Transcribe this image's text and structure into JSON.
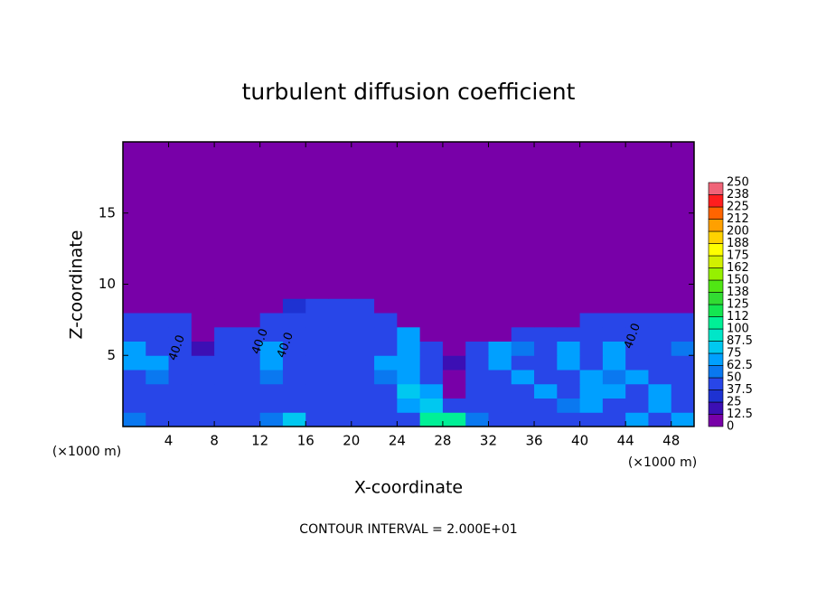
{
  "chart_data": {
    "type": "heatmap",
    "title": "turbulent diffusion coefficient",
    "xlabel": "X-coordinate",
    "ylabel": "Z-coordinate",
    "x_unit": "(×1000 m)",
    "footnote": "CONTOUR INTERVAL = 2.000E+01",
    "xlim": [
      0,
      50
    ],
    "ylim": [
      0,
      20
    ],
    "xticks": [
      4,
      8,
      12,
      16,
      20,
      24,
      28,
      32,
      36,
      40,
      44,
      48
    ],
    "yticks": [
      5,
      10,
      15
    ],
    "x_edges": [
      0,
      2,
      4,
      6,
      8,
      10,
      12,
      14,
      16,
      18,
      20,
      22,
      24,
      26,
      28,
      30,
      32,
      34,
      36,
      38,
      40,
      42,
      44,
      46,
      48,
      50
    ],
    "z_edges": [
      0,
      1,
      2,
      3,
      4,
      5,
      6,
      7,
      8,
      9,
      10,
      20
    ],
    "values": [
      [
        60,
        45,
        40,
        45,
        40,
        45,
        50,
        80,
        45,
        40,
        45,
        40,
        45,
        100,
        100,
        60,
        40,
        45,
        40,
        45,
        40,
        45,
        70,
        40,
        70
      ],
      [
        45,
        40,
        45,
        40,
        40,
        45,
        45,
        40,
        40,
        45,
        40,
        45,
        70,
        80,
        45,
        40,
        40,
        45,
        45,
        50,
        70,
        40,
        45,
        70,
        45
      ],
      [
        40,
        40,
        45,
        40,
        45,
        40,
        40,
        45,
        45,
        40,
        45,
        45,
        75,
        70,
        12,
        40,
        45,
        45,
        70,
        45,
        70,
        70,
        45,
        70,
        40
      ],
      [
        45,
        60,
        40,
        45,
        40,
        40,
        60,
        40,
        40,
        40,
        45,
        60,
        70,
        40,
        12,
        40,
        40,
        70,
        45,
        40,
        70,
        60,
        70,
        45,
        40
      ],
      [
        70,
        65,
        40,
        40,
        40,
        40,
        70,
        40,
        40,
        40,
        40,
        65,
        70,
        40,
        20,
        40,
        70,
        40,
        40,
        70,
        40,
        70,
        45,
        40,
        45
      ],
      [
        70,
        40,
        45,
        20,
        40,
        45,
        70,
        45,
        40,
        40,
        45,
        40,
        70,
        45,
        12,
        40,
        70,
        60,
        40,
        70,
        40,
        70,
        40,
        40,
        60
      ],
      [
        40,
        40,
        40,
        0,
        40,
        40,
        45,
        40,
        40,
        40,
        40,
        40,
        65,
        0,
        0,
        0,
        0,
        40,
        45,
        45,
        45,
        40,
        40,
        45,
        40
      ],
      [
        40,
        40,
        40,
        0,
        0,
        0,
        40,
        40,
        40,
        40,
        40,
        40,
        0,
        0,
        0,
        0,
        0,
        0,
        0,
        0,
        40,
        40,
        40,
        40,
        40
      ],
      [
        0,
        0,
        0,
        0,
        0,
        0,
        0,
        30,
        40,
        40,
        40,
        0,
        0,
        0,
        0,
        0,
        0,
        0,
        0,
        0,
        0,
        0,
        0,
        0,
        0
      ],
      [
        0,
        0,
        0,
        0,
        0,
        0,
        0,
        0,
        0,
        0,
        0,
        0,
        0,
        0,
        0,
        0,
        0,
        0,
        0,
        0,
        0,
        0,
        0,
        0,
        0
      ],
      [
        0,
        0,
        0,
        0,
        0,
        0,
        0,
        0,
        0,
        0,
        0,
        0,
        0,
        0,
        0,
        0,
        0,
        0,
        0,
        0,
        0,
        0,
        0,
        0,
        0
      ]
    ],
    "colorbar": {
      "ticks": [
        0,
        12.5,
        25,
        37.5,
        50,
        62.5,
        75,
        87.5,
        100,
        {
          "value": 112.5,
          "label": "112"
        },
        125,
        {
          "value": 137.5,
          "label": "138"
        },
        150,
        {
          "value": 162.5,
          "label": "162"
        },
        175,
        {
          "value": 187.5,
          "label": "188"
        },
        200,
        {
          "value": 212.5,
          "label": "212"
        },
        225,
        {
          "value": 237.5,
          "label": "238"
        },
        250
      ],
      "colors": [
        "#7800a8",
        "#3c0fb4",
        "#1e32d2",
        "#2846e8",
        "#0a78f0",
        "#00a0ff",
        "#00c8f0",
        "#00e6c8",
        "#00f096",
        "#14e650",
        "#32dc32",
        "#50e614",
        "#96f000",
        "#d2f000",
        "#ffff00",
        "#ffd200",
        "#ffa000",
        "#ff6400",
        "#ff1e1e",
        "#f06478"
      ]
    },
    "contour_labels": [
      "40.0",
      "40.0",
      "40.0",
      "40.0"
    ]
  }
}
